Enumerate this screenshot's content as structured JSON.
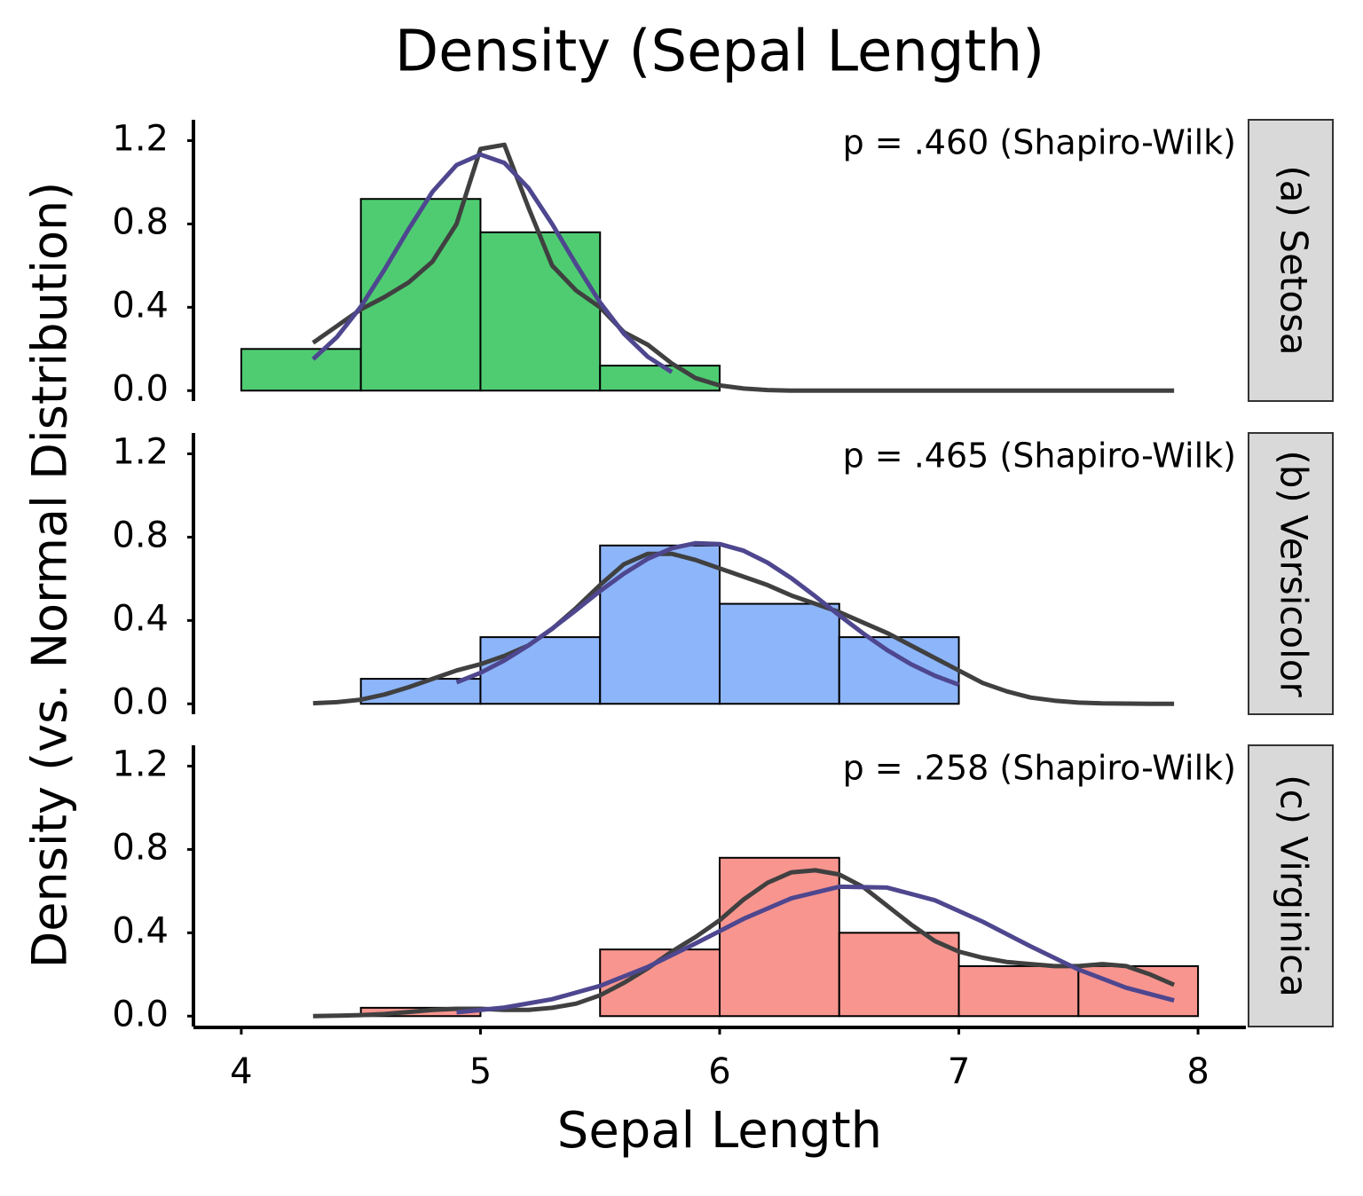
{
  "chart_data": {
    "type": "histogram",
    "title": "Density (Sepal Length)",
    "x_label": "Sepal Length",
    "y_label": "Density (vs. Normal Distribution)",
    "xlim": [
      3.8,
      8.2
    ],
    "xticks": [
      4,
      5,
      6,
      7,
      8
    ],
    "ylim": [
      -0.05,
      1.3
    ],
    "yticks": [
      {
        "value": 0,
        "label": "0.0"
      },
      0.4,
      0.8,
      1.2
    ],
    "bins": [
      4,
      4.5,
      5,
      5.5,
      6,
      6.5,
      7,
      7.5,
      8
    ],
    "facets": [
      {
        "label": "(a) Setosa",
        "annotation": "p = .460 (Shapiro-Wilk)",
        "color": "#4fcc72",
        "counts": [
          0.2,
          0.92,
          0.76,
          0.12,
          0,
          0,
          0,
          0
        ],
        "density": {
          "color": "#404040",
          "x": [
            4.3,
            4.4,
            4.5,
            4.6,
            4.7,
            4.8,
            4.9,
            5.0,
            5.1,
            5.2,
            5.3,
            5.4,
            5.5,
            5.6,
            5.7,
            5.8,
            5.9,
            6.0,
            6.1,
            6.2,
            6.3,
            6.4,
            6.5,
            6.6,
            6.7,
            6.8,
            6.9,
            7.0,
            7.1,
            7.2,
            7.3,
            7.4,
            7.5,
            7.6,
            7.7,
            7.8,
            7.9
          ],
          "values": [
            0.23,
            0.31,
            0.39,
            0.45,
            0.52,
            0.62,
            0.8,
            1.16,
            1.18,
            0.88,
            0.6,
            0.48,
            0.4,
            0.28,
            0.22,
            0.13,
            0.06,
            0.025,
            0.01,
            0.003,
            0,
            0,
            0,
            0,
            0,
            0,
            0,
            0,
            0,
            0,
            0,
            0,
            0,
            0,
            0,
            0,
            0
          ]
        },
        "normal": {
          "color": "#4e478f",
          "x": [
            4.3,
            4.4,
            4.5,
            4.6,
            4.7,
            4.8,
            4.9,
            5.0,
            5.1,
            5.2,
            5.3,
            5.4,
            5.5,
            5.6,
            5.7,
            5.8
          ],
          "values": [
            0.151,
            0.257,
            0.403,
            0.583,
            0.776,
            0.955,
            1.083,
            1.133,
            1.093,
            0.973,
            0.799,
            0.606,
            0.423,
            0.273,
            0.162,
            0.089
          ]
        }
      },
      {
        "label": "(b) Versicolor",
        "annotation": "p = .465 (Shapiro-Wilk)",
        "color": "#8db5fa",
        "counts": [
          0,
          0.12,
          0.32,
          0.76,
          0.48,
          0.32,
          0,
          0
        ],
        "density": {
          "color": "#404040",
          "x": [
            4.3,
            4.4,
            4.5,
            4.6,
            4.7,
            4.8,
            4.9,
            5.0,
            5.1,
            5.2,
            5.3,
            5.4,
            5.5,
            5.6,
            5.7,
            5.8,
            5.9,
            6.0,
            6.1,
            6.2,
            6.3,
            6.4,
            6.5,
            6.6,
            6.7,
            6.8,
            6.9,
            7.0,
            7.1,
            7.2,
            7.3,
            7.4,
            7.5,
            7.6,
            7.7,
            7.8,
            7.9
          ],
          "values": [
            0.003,
            0.008,
            0.02,
            0.045,
            0.08,
            0.12,
            0.16,
            0.19,
            0.23,
            0.28,
            0.36,
            0.46,
            0.57,
            0.67,
            0.72,
            0.72,
            0.69,
            0.65,
            0.61,
            0.57,
            0.52,
            0.48,
            0.44,
            0.39,
            0.34,
            0.28,
            0.22,
            0.16,
            0.1,
            0.06,
            0.03,
            0.015,
            0.006,
            0.002,
            0.001,
            0,
            0
          ]
        },
        "normal": {
          "color": "#4e478f",
          "x": [
            4.9,
            5.0,
            5.1,
            5.2,
            5.3,
            5.4,
            5.5,
            5.6,
            5.7,
            5.8,
            5.9,
            6.0,
            6.1,
            6.2,
            6.3,
            6.4,
            6.5,
            6.6,
            6.7,
            6.8,
            6.9,
            7.0
          ],
          "values": [
            0.103,
            0.149,
            0.208,
            0.28,
            0.361,
            0.45,
            0.541,
            0.625,
            0.696,
            0.747,
            0.771,
            0.767,
            0.735,
            0.678,
            0.603,
            0.516,
            0.425,
            0.338,
            0.258,
            0.19,
            0.135,
            0.092
          ]
        }
      },
      {
        "label": "(c) Virginica",
        "annotation": "p = .258 (Shapiro-Wilk)",
        "color": "#f8958f",
        "counts": [
          0,
          0.04,
          0,
          0.32,
          0.76,
          0.4,
          0.24,
          0.24
        ],
        "density": {
          "color": "#404040",
          "x": [
            4.3,
            4.4,
            4.5,
            4.6,
            4.7,
            4.8,
            4.9,
            5.0,
            5.1,
            5.2,
            5.3,
            5.4,
            5.5,
            5.6,
            5.7,
            5.8,
            5.9,
            6.0,
            6.1,
            6.2,
            6.3,
            6.4,
            6.5,
            6.6,
            6.7,
            6.8,
            6.9,
            7.0,
            7.1,
            7.2,
            7.3,
            7.4,
            7.5,
            7.6,
            7.7,
            7.8,
            7.9
          ],
          "values": [
            0,
            0.002,
            0.005,
            0.01,
            0.02,
            0.03,
            0.035,
            0.035,
            0.03,
            0.03,
            0.04,
            0.06,
            0.1,
            0.16,
            0.23,
            0.31,
            0.38,
            0.46,
            0.56,
            0.64,
            0.69,
            0.7,
            0.68,
            0.62,
            0.53,
            0.44,
            0.36,
            0.31,
            0.28,
            0.26,
            0.25,
            0.24,
            0.24,
            0.25,
            0.24,
            0.2,
            0.15
          ]
        },
        "normal": {
          "color": "#4e478f",
          "x": [
            4.9,
            5.1,
            5.3,
            5.5,
            5.7,
            5.9,
            6.1,
            6.3,
            6.5,
            6.7,
            6.9,
            7.1,
            7.3,
            7.5,
            7.7,
            7.9
          ],
          "values": [
            0.018,
            0.041,
            0.081,
            0.145,
            0.236,
            0.349,
            0.467,
            0.566,
            0.621,
            0.617,
            0.556,
            0.453,
            0.335,
            0.224,
            0.136,
            0.075
          ]
        }
      }
    ]
  }
}
